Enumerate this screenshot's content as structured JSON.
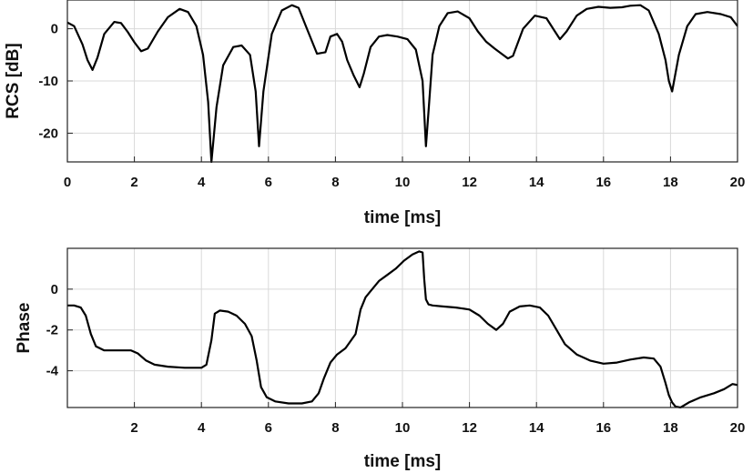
{
  "chart_data": [
    {
      "type": "line",
      "xlabel": "time [ms]",
      "ylabel": "RCS [dB]",
      "xlim": [
        0,
        20
      ],
      "ylim": [
        -25.5,
        5.5
      ],
      "xticks": [
        0,
        2,
        4,
        6,
        8,
        10,
        12,
        14,
        16,
        18,
        20
      ],
      "yticks": [
        -20,
        -10,
        0
      ],
      "grid": true,
      "series": [
        {
          "color": "#000000",
          "x": [
            0,
            0.2,
            0.45,
            0.6,
            0.75,
            0.9,
            1.1,
            1.4,
            1.6,
            1.8,
            2.0,
            2.2,
            2.4,
            2.7,
            3.0,
            3.35,
            3.6,
            3.85,
            4.05,
            4.2,
            4.3,
            4.45,
            4.65,
            4.95,
            5.2,
            5.45,
            5.62,
            5.72,
            5.85,
            6.1,
            6.4,
            6.7,
            6.9,
            7.15,
            7.45,
            7.7,
            7.85,
            8.05,
            8.2,
            8.35,
            8.55,
            8.72,
            8.85,
            9.05,
            9.3,
            9.55,
            9.85,
            10.15,
            10.4,
            10.6,
            10.7,
            10.8,
            10.9,
            11.1,
            11.35,
            11.65,
            12.0,
            12.25,
            12.5,
            12.75,
            13.0,
            13.15,
            13.3,
            13.6,
            13.95,
            14.3,
            14.55,
            14.7,
            14.9,
            15.2,
            15.5,
            15.85,
            16.2,
            16.55,
            16.8,
            17.1,
            17.35,
            17.65,
            17.85,
            17.95,
            18.05,
            18.25,
            18.5,
            18.75,
            19.1,
            19.5,
            19.8,
            20.0
          ],
          "values": [
            1.2,
            0.5,
            -3,
            -6,
            -7.9,
            -5.5,
            -1,
            1.3,
            1.1,
            -0.6,
            -2.6,
            -4.3,
            -3.8,
            -0.5,
            2.2,
            3.8,
            3.2,
            0.5,
            -5,
            -14,
            -25.5,
            -15,
            -7,
            -3.5,
            -3.2,
            -5,
            -12,
            -22.5,
            -12,
            -1,
            3.5,
            4.5,
            4,
            0,
            -4.8,
            -4.5,
            -1.5,
            -1,
            -2.5,
            -6,
            -9,
            -11.2,
            -8.5,
            -3.5,
            -1.5,
            -1.2,
            -1.5,
            -2,
            -4,
            -10,
            -22.5,
            -14,
            -5,
            0.5,
            3,
            3.3,
            2,
            -0.5,
            -2.5,
            -3.8,
            -5,
            -5.7,
            -5.2,
            0,
            2.5,
            2,
            -0.5,
            -2,
            -0.5,
            2.5,
            3.8,
            4.2,
            4,
            4.1,
            4.4,
            4.5,
            3.5,
            -1,
            -6,
            -10,
            -12,
            -5,
            0.5,
            2.8,
            3.2,
            2.8,
            2.2,
            0.5
          ]
        }
      ]
    },
    {
      "type": "line",
      "xlabel": "time [ms]",
      "ylabel": "Phase",
      "xlim": [
        0,
        20
      ],
      "ylim": [
        -5.8,
        2
      ],
      "xticks": [
        2,
        4,
        6,
        8,
        10,
        12,
        14,
        16,
        18,
        20
      ],
      "yticks": [
        -4,
        -2,
        0
      ],
      "grid": true,
      "series": [
        {
          "color": "#000000",
          "x": [
            0,
            0.2,
            0.4,
            0.55,
            0.7,
            0.85,
            1.1,
            1.5,
            1.9,
            2.1,
            2.35,
            2.6,
            3.0,
            3.5,
            4.0,
            4.15,
            4.3,
            4.4,
            4.55,
            4.8,
            5.05,
            5.3,
            5.5,
            5.65,
            5.78,
            5.95,
            6.2,
            6.6,
            7.0,
            7.3,
            7.5,
            7.65,
            7.85,
            8.05,
            8.3,
            8.6,
            8.75,
            8.9,
            9.05,
            9.3,
            9.55,
            9.8,
            10.05,
            10.3,
            10.5,
            10.6,
            10.65,
            10.7,
            10.78,
            10.9,
            11.2,
            11.6,
            12.0,
            12.3,
            12.55,
            12.8,
            13.0,
            13.2,
            13.5,
            13.8,
            14.1,
            14.35,
            14.6,
            14.85,
            15.2,
            15.6,
            16.0,
            16.4,
            16.8,
            17.2,
            17.5,
            17.7,
            17.85,
            17.95,
            18.05,
            18.15,
            18.3,
            18.55,
            18.9,
            19.3,
            19.6,
            19.85,
            20.0
          ],
          "values": [
            -0.8,
            -0.8,
            -0.9,
            -1.3,
            -2.2,
            -2.8,
            -3.0,
            -3.0,
            -3.0,
            -3.15,
            -3.5,
            -3.7,
            -3.8,
            -3.85,
            -3.85,
            -3.7,
            -2.5,
            -1.2,
            -1.05,
            -1.1,
            -1.3,
            -1.7,
            -2.3,
            -3.5,
            -4.8,
            -5.3,
            -5.5,
            -5.6,
            -5.6,
            -5.5,
            -5.1,
            -4.4,
            -3.6,
            -3.2,
            -2.9,
            -2.2,
            -1.0,
            -0.4,
            -0.1,
            0.4,
            0.7,
            1.0,
            1.4,
            1.7,
            1.85,
            1.8,
            0.5,
            -0.5,
            -0.75,
            -0.8,
            -0.85,
            -0.9,
            -1.0,
            -1.3,
            -1.7,
            -2.0,
            -1.7,
            -1.1,
            -0.85,
            -0.8,
            -0.9,
            -1.3,
            -2.0,
            -2.7,
            -3.2,
            -3.5,
            -3.65,
            -3.6,
            -3.45,
            -3.35,
            -3.4,
            -3.8,
            -4.6,
            -5.2,
            -5.55,
            -5.75,
            -5.8,
            -5.55,
            -5.3,
            -5.1,
            -4.9,
            -4.65,
            -4.7
          ]
        }
      ]
    }
  ]
}
